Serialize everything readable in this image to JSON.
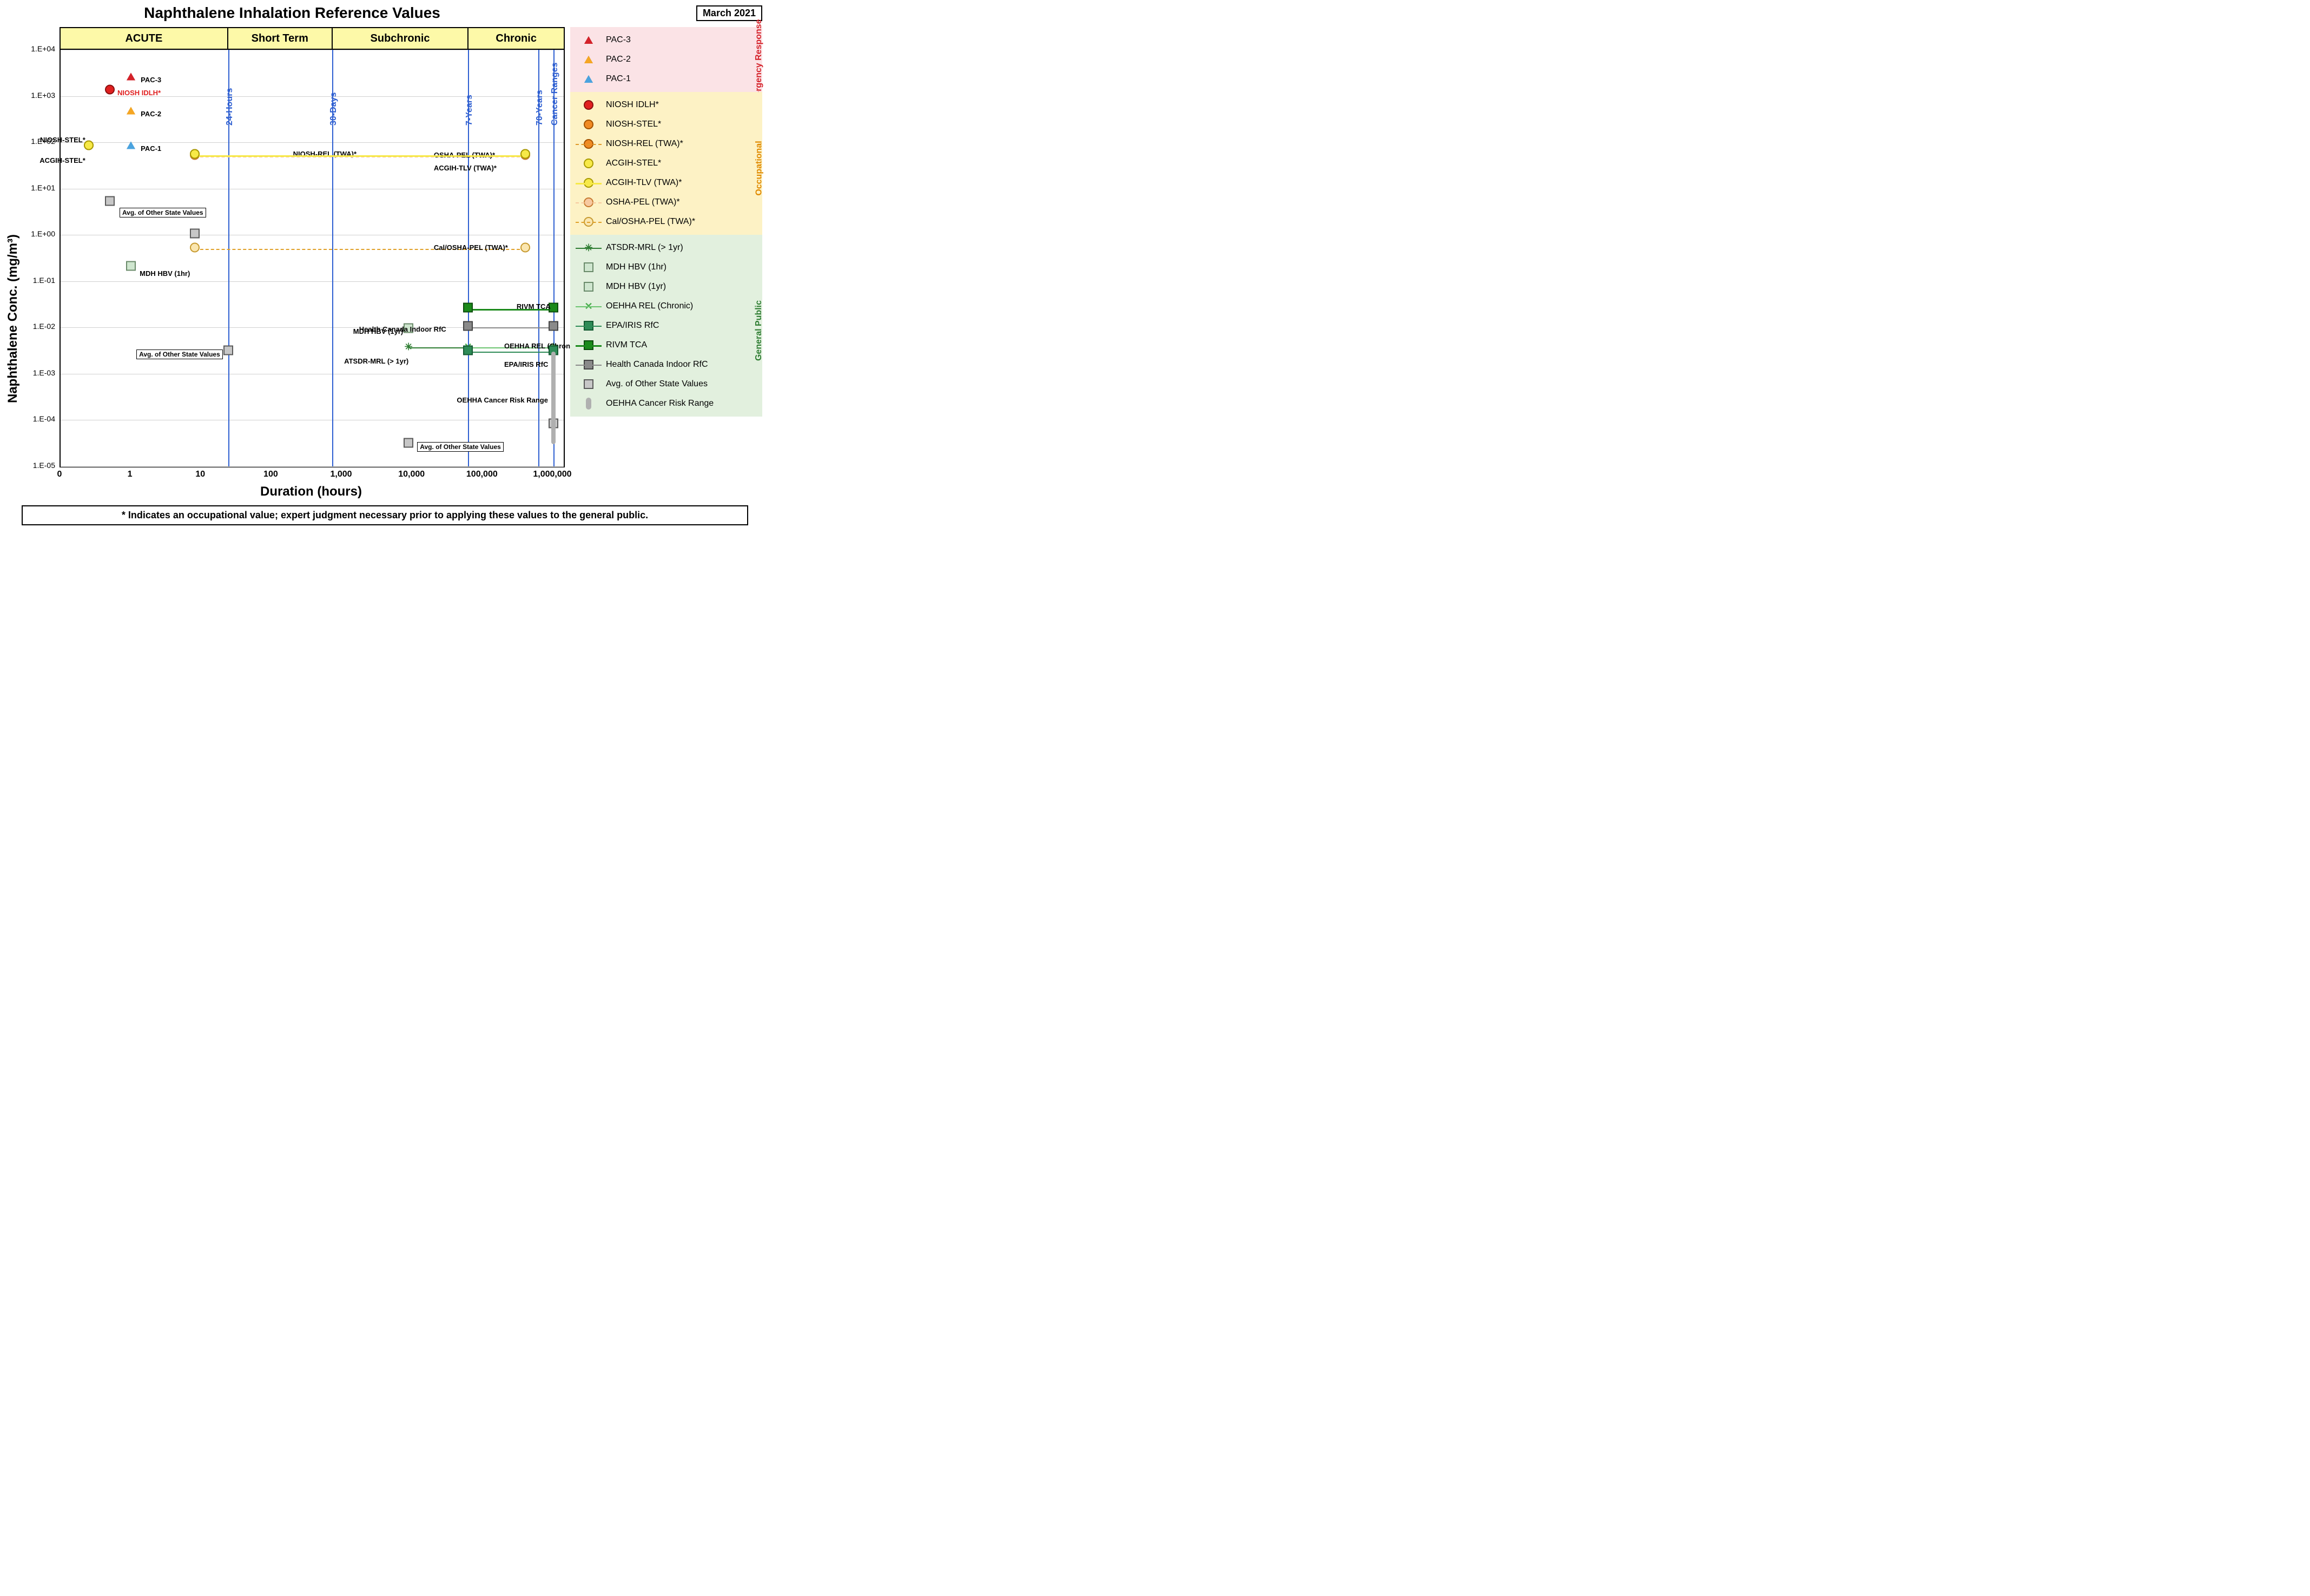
{
  "title": "Naphthalene Inhalation Reference Values",
  "date": "March 2021",
  "axes": {
    "xlabel": "Duration (hours)",
    "ylabel": "Naphthalene Conc. (mg/m³)",
    "xscale": "log",
    "yscale": "log",
    "xrange_hours": [
      0.1,
      1400000
    ],
    "yrange": [
      1e-05,
      10000.0
    ],
    "grid_color": "#d0d0d0",
    "xticks": [
      {
        "v": 0,
        "label": "0"
      },
      {
        "v": 1,
        "label": "1"
      },
      {
        "v": 10,
        "label": "10"
      },
      {
        "v": 100,
        "label": "100"
      },
      {
        "v": 1000,
        "label": "1,000"
      },
      {
        "v": 10000,
        "label": "10,000"
      },
      {
        "v": 100000,
        "label": "100,000"
      },
      {
        "v": 1000000,
        "label": "1,000,000"
      }
    ],
    "yticks": [
      {
        "v": 1e-05,
        "label": "1.E-05"
      },
      {
        "v": 0.0001,
        "label": "1.E-04"
      },
      {
        "v": 0.001,
        "label": "1.E-03"
      },
      {
        "v": 0.01,
        "label": "1.E-02"
      },
      {
        "v": 0.1,
        "label": "1.E-01"
      },
      {
        "v": 1.0,
        "label": "1.E+00"
      },
      {
        "v": 10.0,
        "label": "1.E+01"
      },
      {
        "v": 100.0,
        "label": "1.E+02"
      },
      {
        "v": 1000.0,
        "label": "1.E+03"
      },
      {
        "v": 10000.0,
        "label": "1.E+04"
      }
    ]
  },
  "bands": [
    {
      "label": "ACUTE",
      "from": 0.1,
      "to": 24
    },
    {
      "label": "Short Term",
      "from": 24,
      "to": 720
    },
    {
      "label": "Subchronic",
      "from": 720,
      "to": 61320
    },
    {
      "label": "Chronic",
      "from": 61320,
      "to": 1400000
    }
  ],
  "band_color": "#fdf9a8",
  "vlines": [
    {
      "hours": 24,
      "label": "24-Hours"
    },
    {
      "hours": 720,
      "label": "30-Days"
    },
    {
      "hours": 61320,
      "label": "7-Years"
    },
    {
      "hours": 613200,
      "label": "70-Years"
    },
    {
      "hours": 1000000,
      "label": "Cancer Ranges"
    }
  ],
  "vline_color": "#2e5fd1",
  "legend_sections": [
    {
      "name": "Emergency Response",
      "bg": "#fbe3e6",
      "label_color": "#d4222a",
      "items": [
        "pac3",
        "pac2",
        "pac1"
      ]
    },
    {
      "name": "Occupational",
      "bg": "#fdf2c5",
      "label_color": "#e08a00",
      "items": [
        "niosh_idlh",
        "niosh_stel",
        "niosh_rel_twa",
        "acgih_stel",
        "acgih_tlv_twa",
        "osha_pel_twa",
        "calosha_pel_twa"
      ]
    },
    {
      "name": "General Public",
      "bg": "#e2f0de",
      "label_color": "#2e7d32",
      "items": [
        "atsdr_mrl",
        "mdh_hbv_1hr",
        "mdh_hbv_1yr",
        "oehha_rel_chronic",
        "epa_iris_rfc",
        "rivm_tca",
        "hc_indoor_rfc",
        "avg_state",
        "oehha_cancer_range"
      ]
    }
  ],
  "series": {
    "pac3": {
      "label": "PAC-3",
      "type": "point",
      "shape": "triangle",
      "fill": "#d4222a",
      "stroke": "#7a0f14",
      "hours": 1,
      "conc": 2500,
      "annot": {
        "text": "PAC-3",
        "dx": 18,
        "dy": -4
      }
    },
    "pac2": {
      "label": "PAC-2",
      "type": "point",
      "shape": "triangle",
      "fill": "#f5a623",
      "stroke": "#b06e00",
      "hours": 1,
      "conc": 450,
      "annot": {
        "text": "PAC-2",
        "dx": 18,
        "dy": -4
      }
    },
    "pac1": {
      "label": "PAC-1",
      "type": "point",
      "shape": "triangle",
      "fill": "#4aa3df",
      "stroke": "#1c5f8f",
      "hours": 1,
      "conc": 80,
      "annot": {
        "text": "PAC-1",
        "dx": 18,
        "dy": -4
      }
    },
    "niosh_idlh": {
      "label": "NIOSH IDLH*",
      "type": "point",
      "shape": "circle",
      "fill": "#e02020",
      "stroke": "#8a0f0f",
      "hours": 0.5,
      "conc": 1300,
      "annot": {
        "text": "NIOSH IDLH*",
        "dx": 14,
        "dy": -4,
        "color": "#e02020"
      }
    },
    "niosh_stel": {
      "label": "NIOSH-STEL*",
      "type": "point",
      "shape": "circle",
      "fill": "#f08a24",
      "stroke": "#a35200",
      "hours": 0.25,
      "conc": 80,
      "annot": {
        "text": "NIOSH-STEL*",
        "dx": -6,
        "dy": -20,
        "align": "right",
        "leader": true
      }
    },
    "acgih_stel": {
      "label": "ACGIH-STEL*",
      "type": "point",
      "shape": "circle",
      "fill": "#f7e948",
      "stroke": "#a89a00",
      "hours": 0.25,
      "conc": 80,
      "annot": {
        "text": "ACGIH-STEL*",
        "dx": -6,
        "dy": 18,
        "align": "right",
        "leader": true
      }
    },
    "niosh_rel_twa": {
      "label": "NIOSH-REL (TWA)*",
      "type": "line",
      "shape": "circle",
      "fill": "#f08a24",
      "stroke": "#a35200",
      "line_color": "#e09a2a",
      "line_dash": "4,4",
      "line_width": 2,
      "h_from": 8,
      "h_to": 400000,
      "conc": 52,
      "annot": {
        "text": "NIOSH-REL (TWA)*",
        "at_hours": 200,
        "dy": -10
      }
    },
    "osha_pel_twa": {
      "label": "OSHA-PEL (TWA)*",
      "type": "line",
      "shape": "circle",
      "fill": "#f7c9a0",
      "stroke": "#c77a30",
      "line_color": "#f7c9a0",
      "line_dash": "4,4",
      "line_width": 2,
      "h_from": 8,
      "h_to": 400000,
      "conc": 50,
      "annot": {
        "text": "OSHA-PEL (TWA)*",
        "at_hours": 20000,
        "dy": -10
      }
    },
    "acgih_tlv_twa": {
      "label": "ACGIH-TLV (TWA)*",
      "type": "line",
      "shape": "circle",
      "fill": "#f7e948",
      "stroke": "#a89a00",
      "line_color": "#f7e948",
      "line_dash": "0",
      "line_width": 3,
      "h_from": 8,
      "h_to": 400000,
      "conc": 52,
      "annot": {
        "text": "ACGIH-TLV (TWA)*",
        "at_hours": 20000,
        "dy": 16
      }
    },
    "calosha_pel_twa": {
      "label": "Cal/OSHA-PEL (TWA)*",
      "type": "line",
      "shape": "circle",
      "fill": "#fae6b0",
      "stroke": "#c79a30",
      "line_color": "#e0a028",
      "line_dash": "6,5",
      "line_width": 2,
      "h_from": 8,
      "h_to": 400000,
      "conc": 0.5,
      "annot": {
        "text": "Cal/OSHA-PEL (TWA)*",
        "at_hours": 20000,
        "dy": -10
      }
    },
    "atsdr_mrl": {
      "label": "ATSDR-MRL (> 1yr)",
      "type": "line",
      "shape": "asterisk",
      "fill": "#2e7d32",
      "stroke": "#1b4d1e",
      "line_color": "#2e7d32",
      "line_dash": "0",
      "line_width": 2,
      "h_from": 8760,
      "h_to": 1000000,
      "conc": 0.0037,
      "annot": {
        "text": "ATSDR-MRL (> 1yr)",
        "at_hours": 8760,
        "dy": 18,
        "align": "right"
      }
    },
    "mdh_hbv_1hr": {
      "label": "MDH HBV (1hr)",
      "type": "point",
      "shape": "square",
      "fill": "#cfe6cf",
      "stroke": "#6a8a6a",
      "hours": 1,
      "conc": 0.2,
      "annot": {
        "text": "MDH HBV (1hr)",
        "dx": 16,
        "dy": 4
      }
    },
    "mdh_hbv_1yr": {
      "label": "MDH HBV (1yr)",
      "type": "point",
      "shape": "square",
      "fill": "#cfe6cf",
      "stroke": "#6a8a6a",
      "hours": 8760,
      "conc": 0.009,
      "annot": {
        "text": "MDH HBV (1yr)",
        "dx": -10,
        "dy": -4,
        "align": "right",
        "leader": true
      }
    },
    "oehha_rel_chronic": {
      "label": "OEHHA REL (Chronic)",
      "type": "line",
      "shape": "x",
      "fill": "#4caf50",
      "stroke": "#2e7d32",
      "line_color": "#6bc46f",
      "line_dash": "0",
      "line_width": 2,
      "h_from": 61320,
      "h_to": 1000000,
      "conc": 0.0037,
      "annot": {
        "text": "OEHHA REL (Chronic)",
        "at_hours": 200000,
        "dy": -10
      }
    },
    "epa_iris_rfc": {
      "label": "EPA/IRIS RfC",
      "type": "line",
      "shape": "square",
      "fill": "#2e8b57",
      "stroke": "#145a32",
      "line_color": "#2e8b57",
      "line_dash": "0",
      "line_width": 2,
      "h_from": 61320,
      "h_to": 1000000,
      "conc": 0.003,
      "annot": {
        "text": "EPA/IRIS RfC",
        "at_hours": 200000,
        "dy": 16
      }
    },
    "rivm_tca": {
      "label": "RIVM TCA",
      "type": "line",
      "shape": "square",
      "fill": "#1b8a1b",
      "stroke": "#0d4d0d",
      "line_color": "#1b8a1b",
      "line_dash": "0",
      "line_width": 3,
      "h_from": 61320,
      "h_to": 1000000,
      "conc": 0.025,
      "annot": {
        "text": "RIVM TCA",
        "at_hours": 300000,
        "dy": -12
      }
    },
    "hc_indoor_rfc": {
      "label": "Health Canada Indoor RfC",
      "type": "line",
      "shape": "square",
      "fill": "#8a8a8a",
      "stroke": "#444444",
      "line_color": "#8a8a8a",
      "line_dash": "0",
      "line_width": 2,
      "h_from": 61320,
      "h_to": 1000000,
      "conc": 0.01,
      "annot": {
        "text": "Health Canada Indoor RfC",
        "at_hours": 30000,
        "dy": -4,
        "align": "right",
        "leader": true
      }
    },
    "avg_state": {
      "label": "Avg. of Other State Values",
      "type": "multi",
      "shape": "square",
      "fill": "#c7c7c7",
      "stroke": "#5a5a5a",
      "points": [
        {
          "hours": 0.5,
          "conc": 5,
          "box": {
            "text": "Avg. of Other State Values",
            "dx": 18,
            "dy": 10,
            "leader": true
          }
        },
        {
          "hours": 8,
          "conc": 1
        },
        {
          "hours": 24,
          "conc": 0.003,
          "box": {
            "text": "Avg. of Other State Values",
            "dx": -10,
            "dy": -4,
            "align": "right"
          }
        },
        {
          "hours": 8760,
          "conc": 3e-05,
          "box": {
            "text": "Avg. of Other State Values",
            "dx": 16,
            "dy": -4,
            "leader": true
          }
        },
        {
          "hours": 1000000,
          "conc": 8e-05
        }
      ]
    },
    "oehha_cancer_range": {
      "label": "OEHHA Cancer Risk Range",
      "type": "range_bar",
      "fill": "#b0b0b0",
      "hours": 1000000,
      "from": 3e-05,
      "to": 0.003,
      "annot": {
        "text": "OEHHA Cancer Risk Range",
        "dx": -10,
        "dy": -4,
        "align": "right"
      }
    }
  },
  "footnote": "*  Indicates an occupational value; expert judgment necessary prior to applying these values to the general public."
}
